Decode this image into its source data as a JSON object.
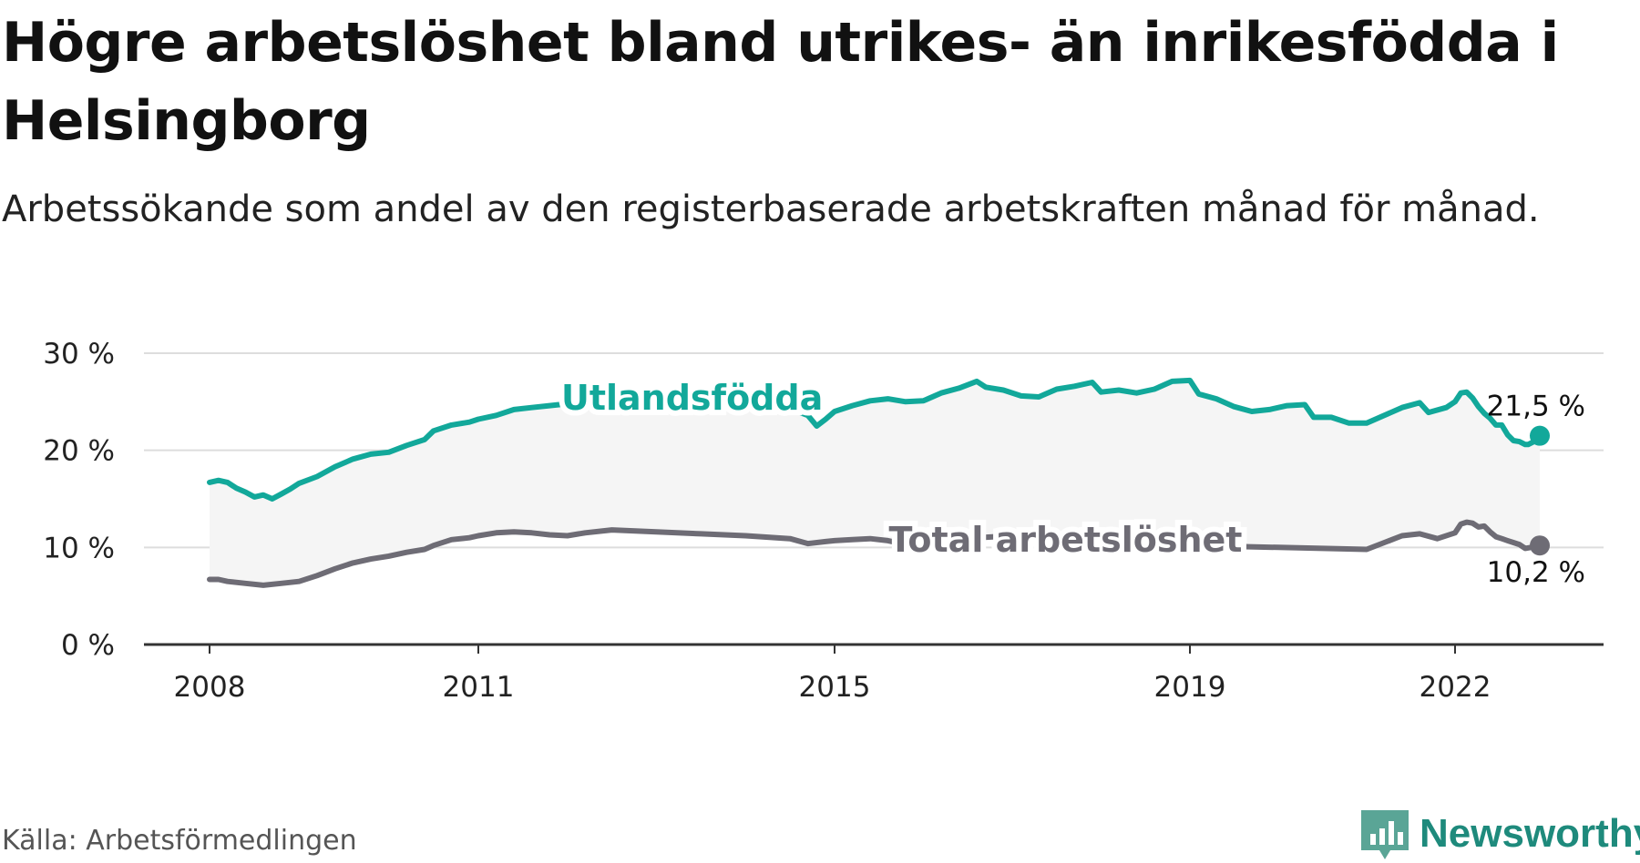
{
  "title": "Högre arbetslöshet bland utrikes- än inrikesfödda i Helsingborg",
  "subtitle": "Arbetssökande som andel av den registerbaserade arbetskraften månad för månad.",
  "source": "Källa: Arbetsförmedlingen",
  "brand": {
    "name": "Newsworthy",
    "icon": "newsworthy-logo-icon"
  },
  "colors": {
    "foreign": "#12a89a",
    "total": "#6e6c75",
    "band": "#f5f5f5",
    "grid": "#dddddd",
    "axis": "#333333",
    "text": "#222222"
  },
  "chart_data": {
    "type": "line",
    "title": "Högre arbetslöshet bland utrikes- än inrikesfödda i Helsingborg",
    "xlabel": "",
    "ylabel": "",
    "ylim": [
      0,
      30
    ],
    "xlim": [
      2008.0,
      2022.9
    ],
    "grid": true,
    "y_ticks": [
      0,
      10,
      20,
      30
    ],
    "y_tick_labels": [
      "0 %",
      "10 %",
      "20 %",
      "30 %"
    ],
    "x_ticks": [
      2008,
      2011,
      2015,
      2019,
      2022
    ],
    "x_tick_labels": [
      "2008",
      "2011",
      "2015",
      "2019",
      "2022"
    ],
    "series": [
      {
        "name": "Utlandsfödda",
        "key": "foreign",
        "label_at": 2013.4,
        "end_label": "21,5 %",
        "end_label_position": "above",
        "points": [
          [
            2008.0,
            16.7
          ],
          [
            2008.1,
            16.9
          ],
          [
            2008.2,
            16.7
          ],
          [
            2008.3,
            16.1
          ],
          [
            2008.4,
            15.7
          ],
          [
            2008.5,
            15.2
          ],
          [
            2008.6,
            15.4
          ],
          [
            2008.7,
            15.0
          ],
          [
            2008.8,
            15.5
          ],
          [
            2008.9,
            16.0
          ],
          [
            2009.0,
            16.6
          ],
          [
            2009.2,
            17.3
          ],
          [
            2009.4,
            18.3
          ],
          [
            2009.6,
            19.1
          ],
          [
            2009.8,
            19.6
          ],
          [
            2010.0,
            19.8
          ],
          [
            2010.2,
            20.5
          ],
          [
            2010.4,
            21.1
          ],
          [
            2010.5,
            22.0
          ],
          [
            2010.7,
            22.6
          ],
          [
            2010.9,
            22.9
          ],
          [
            2011.0,
            23.2
          ],
          [
            2011.2,
            23.6
          ],
          [
            2011.4,
            24.2
          ],
          [
            2011.6,
            24.4
          ],
          [
            2011.8,
            24.6
          ],
          [
            2012.0,
            24.8
          ],
          [
            2012.2,
            25.0
          ],
          [
            2012.5,
            25.3
          ],
          [
            2013.0,
            25.6
          ],
          [
            2013.5,
            25.4
          ],
          [
            2014.0,
            25.0
          ],
          [
            2014.5,
            24.3
          ],
          [
            2014.7,
            23.6
          ],
          [
            2014.8,
            22.5
          ],
          [
            2014.9,
            23.2
          ],
          [
            2015.0,
            24.0
          ],
          [
            2015.2,
            24.6
          ],
          [
            2015.4,
            25.1
          ],
          [
            2015.6,
            25.3
          ],
          [
            2015.8,
            25.0
          ],
          [
            2016.0,
            25.1
          ],
          [
            2016.2,
            25.9
          ],
          [
            2016.4,
            26.4
          ],
          [
            2016.6,
            27.1
          ],
          [
            2016.7,
            26.5
          ],
          [
            2016.9,
            26.2
          ],
          [
            2017.1,
            25.6
          ],
          [
            2017.3,
            25.5
          ],
          [
            2017.5,
            26.3
          ],
          [
            2017.7,
            26.6
          ],
          [
            2017.9,
            27.0
          ],
          [
            2018.0,
            26.0
          ],
          [
            2018.2,
            26.2
          ],
          [
            2018.4,
            25.9
          ],
          [
            2018.6,
            26.3
          ],
          [
            2018.8,
            27.1
          ],
          [
            2019.0,
            27.2
          ],
          [
            2019.1,
            25.8
          ],
          [
            2019.3,
            25.3
          ],
          [
            2019.5,
            24.5
          ],
          [
            2019.7,
            24.0
          ],
          [
            2019.9,
            24.2
          ],
          [
            2020.1,
            24.6
          ],
          [
            2020.3,
            24.7
          ],
          [
            2020.4,
            23.4
          ],
          [
            2020.6,
            23.4
          ],
          [
            2020.8,
            22.8
          ],
          [
            2021.0,
            22.8
          ],
          [
            2021.2,
            23.6
          ],
          [
            2021.4,
            24.4
          ],
          [
            2021.6,
            24.9
          ],
          [
            2021.7,
            23.9
          ],
          [
            2021.9,
            24.4
          ],
          [
            2022.0,
            25.0
          ],
          [
            2022.2,
            25.9
          ],
          [
            2022.4,
            26.0
          ],
          [
            2022.6,
            25.4
          ],
          [
            2022.8,
            24.5
          ],
          [
            2023.0,
            23.8
          ],
          [
            2023.2,
            23.3
          ],
          [
            2023.4,
            22.6
          ],
          [
            2023.6,
            22.6
          ],
          [
            2023.8,
            21.6
          ],
          [
            2024.0,
            21.0
          ],
          [
            2024.2,
            20.9
          ],
          [
            2024.4,
            20.6
          ],
          [
            2024.5,
            20.6
          ],
          [
            2024.7,
            20.9
          ],
          [
            2024.9,
            21.5
          ]
        ]
      },
      {
        "name": "Total arbetslöshet",
        "key": "total",
        "label_at": 2017.6,
        "end_label": "10,2 %",
        "end_label_position": "below",
        "points": [
          [
            2008.0,
            6.7
          ],
          [
            2008.1,
            6.7
          ],
          [
            2008.2,
            6.5
          ],
          [
            2008.4,
            6.3
          ],
          [
            2008.6,
            6.1
          ],
          [
            2008.8,
            6.3
          ],
          [
            2009.0,
            6.5
          ],
          [
            2009.2,
            7.1
          ],
          [
            2009.4,
            7.8
          ],
          [
            2009.6,
            8.4
          ],
          [
            2009.8,
            8.8
          ],
          [
            2010.0,
            9.1
          ],
          [
            2010.2,
            9.5
          ],
          [
            2010.4,
            9.8
          ],
          [
            2010.5,
            10.2
          ],
          [
            2010.7,
            10.8
          ],
          [
            2010.9,
            11.0
          ],
          [
            2011.0,
            11.2
          ],
          [
            2011.2,
            11.5
          ],
          [
            2011.4,
            11.6
          ],
          [
            2011.6,
            11.5
          ],
          [
            2011.8,
            11.3
          ],
          [
            2012.0,
            11.2
          ],
          [
            2012.2,
            11.5
          ],
          [
            2012.5,
            11.8
          ],
          [
            2013.0,
            11.6
          ],
          [
            2013.5,
            11.4
          ],
          [
            2014.0,
            11.2
          ],
          [
            2014.5,
            10.9
          ],
          [
            2014.7,
            10.4
          ],
          [
            2014.9,
            10.6
          ],
          [
            2015.0,
            10.7
          ],
          [
            2015.2,
            10.8
          ],
          [
            2015.4,
            10.9
          ],
          [
            2015.6,
            10.7
          ],
          [
            2015.8,
            10.3
          ],
          [
            2016.0,
            10.5
          ],
          [
            2016.2,
            10.8
          ],
          [
            2016.4,
            10.9
          ],
          [
            2016.6,
            11.0
          ],
          [
            2016.8,
            11.1
          ],
          [
            2017.0,
            11.0
          ],
          [
            2018.0,
            10.8
          ],
          [
            2019.0,
            10.2
          ],
          [
            2019.5,
            10.1
          ],
          [
            2020.0,
            10.0
          ],
          [
            2020.5,
            9.9
          ],
          [
            2021.0,
            9.8
          ],
          [
            2021.2,
            10.5
          ],
          [
            2021.4,
            11.2
          ],
          [
            2021.6,
            11.4
          ],
          [
            2021.8,
            10.9
          ],
          [
            2022.0,
            11.5
          ],
          [
            2022.2,
            12.4
          ],
          [
            2022.4,
            12.6
          ],
          [
            2022.6,
            12.5
          ],
          [
            2022.8,
            12.1
          ],
          [
            2023.0,
            12.2
          ],
          [
            2023.2,
            11.6
          ],
          [
            2023.4,
            11.1
          ],
          [
            2023.6,
            10.9
          ],
          [
            2023.8,
            10.7
          ],
          [
            2024.0,
            10.5
          ],
          [
            2024.2,
            10.3
          ],
          [
            2024.4,
            9.9
          ],
          [
            2024.6,
            10.0
          ],
          [
            2024.8,
            10.1
          ],
          [
            2024.9,
            10.2
          ]
        ]
      }
    ]
  }
}
